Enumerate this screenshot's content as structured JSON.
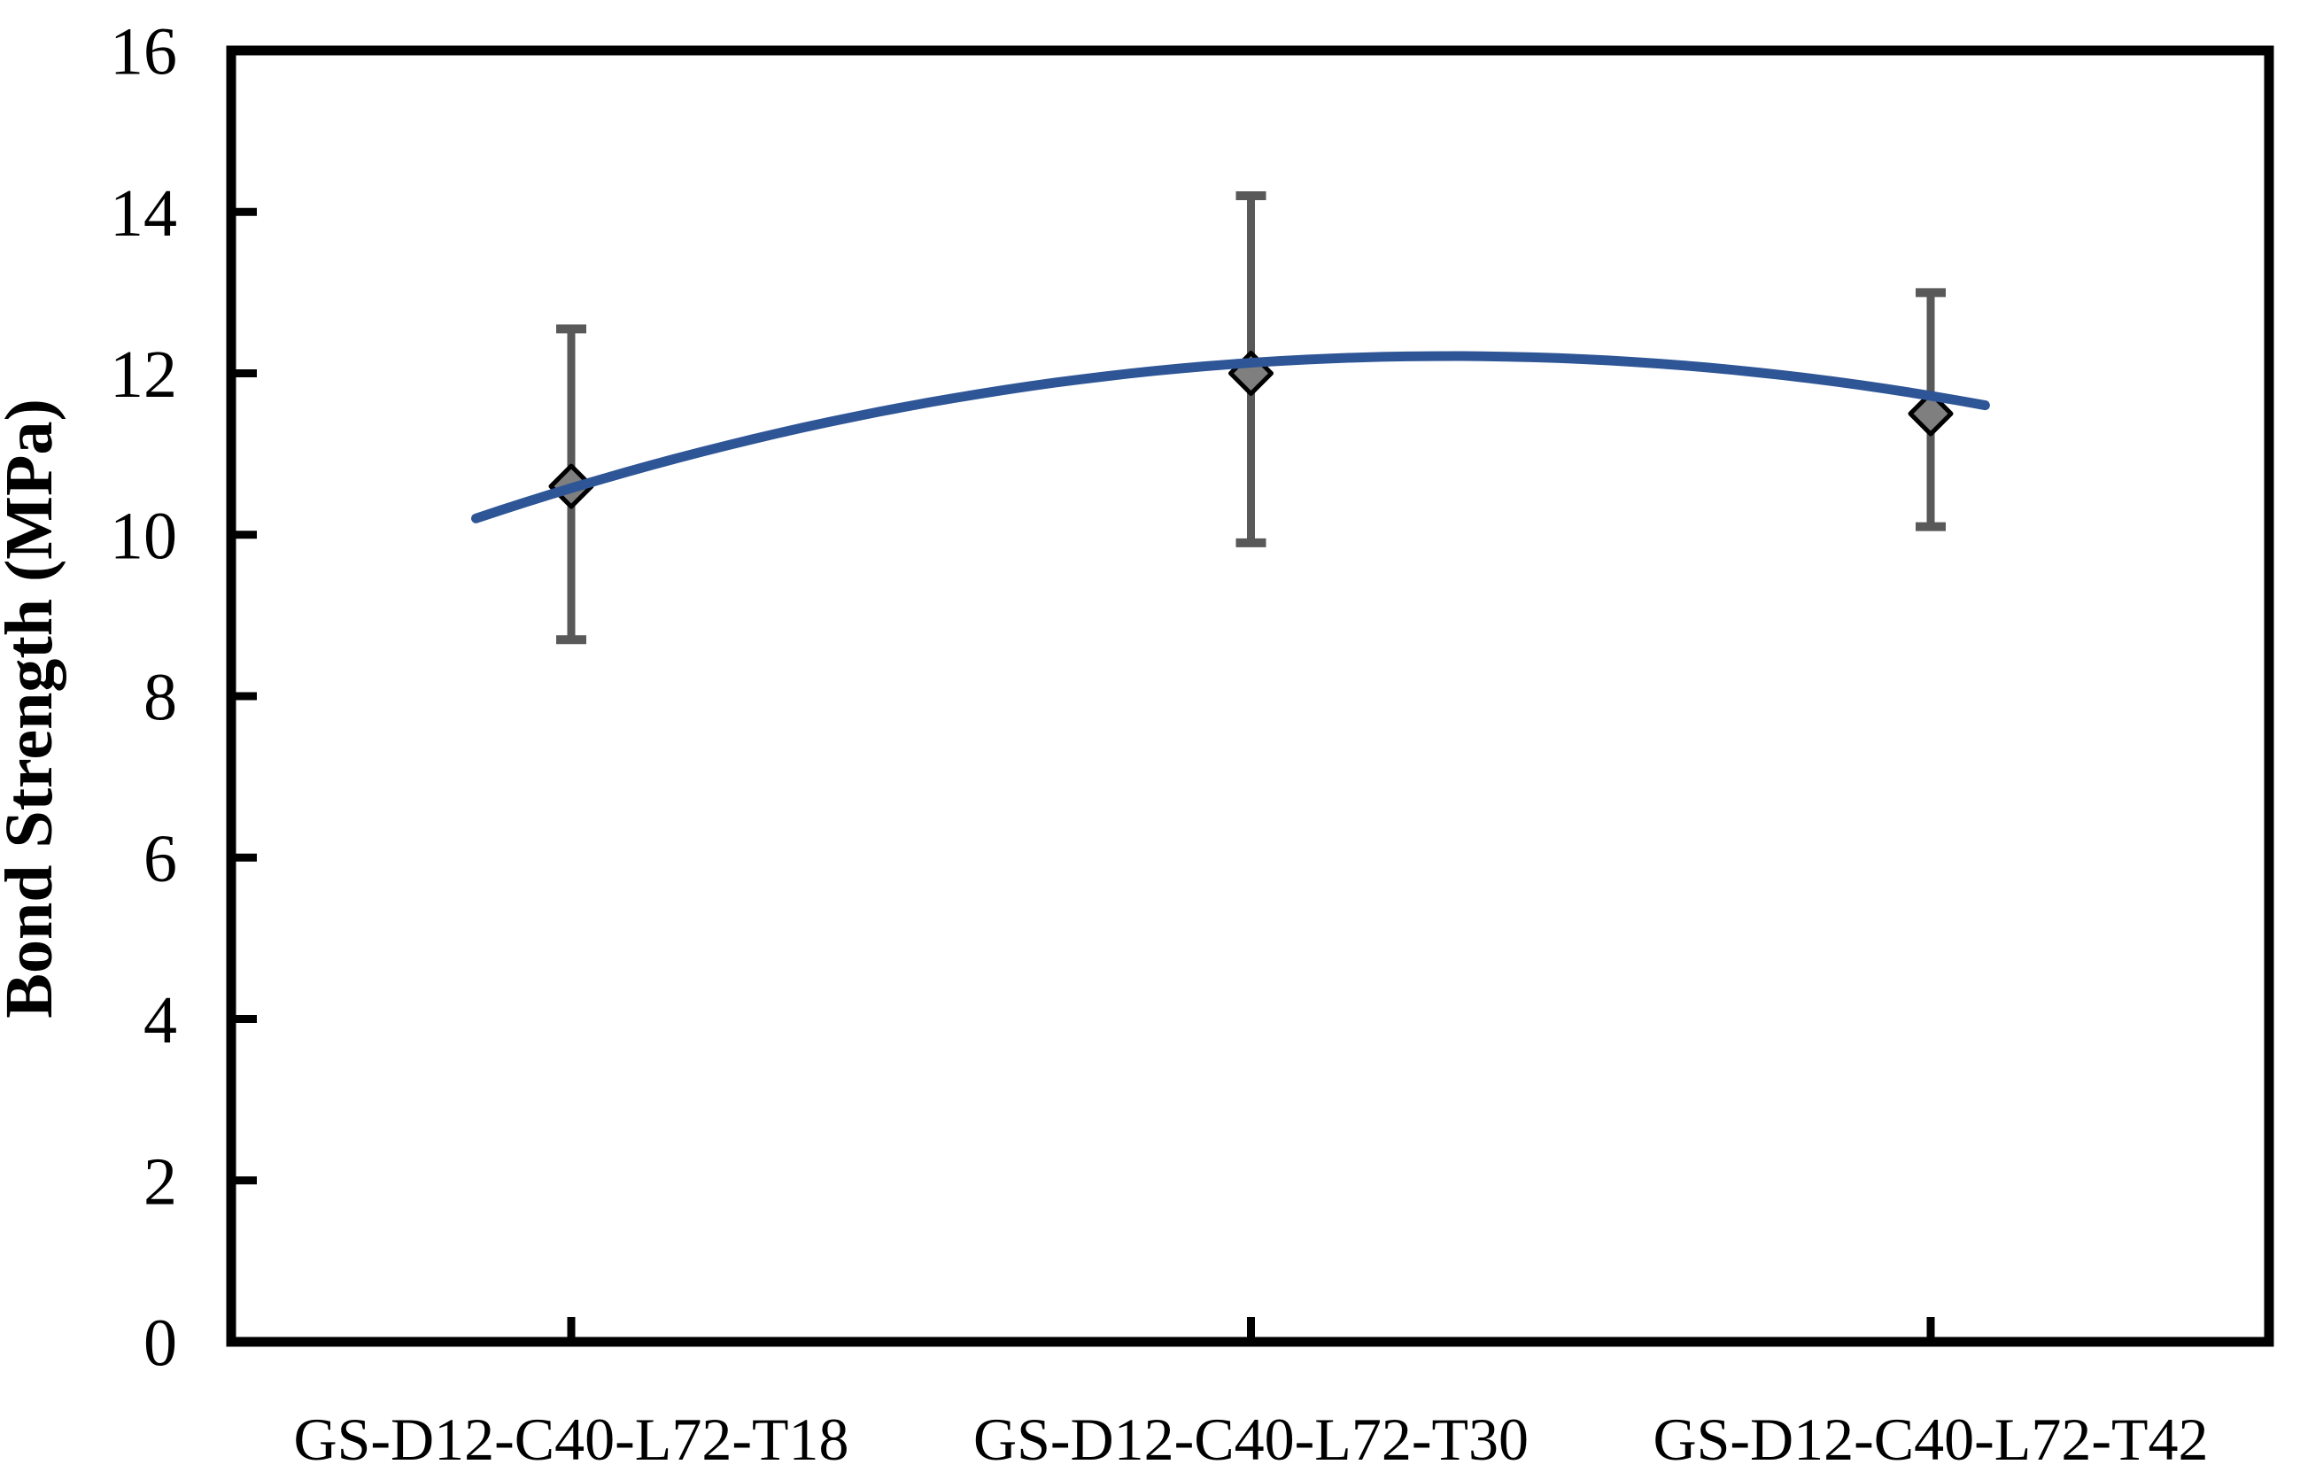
{
  "figure": {
    "background": "#ffffff"
  },
  "chart_data": {
    "type": "scatter",
    "title": "",
    "xlabel": "",
    "ylabel": "Bond Strength (MPa)",
    "ylim": [
      0,
      16
    ],
    "ytick_step": 2,
    "ytick_labels": [
      "0",
      "2",
      "4",
      "6",
      "8",
      "10",
      "12",
      "14",
      "16"
    ],
    "categories": [
      "GS-D12-C40-L72-T18",
      "GS-D12-C40-L72-T30",
      "GS-D12-C40-L72-T42"
    ],
    "series": [
      {
        "name": "Bond strength",
        "marker": "diamond",
        "values": [
          10.6,
          12.0,
          11.5
        ],
        "error_upper": [
          12.55,
          14.2,
          13.0
        ],
        "error_lower": [
          8.7,
          9.9,
          10.1
        ]
      }
    ],
    "trendline": {
      "type": "polynomial",
      "order": 2,
      "coefficients": {
        "a": -0.9814,
        "b": 4.4977,
        "c0": 7.0607
      },
      "x_domain": [
        0.86,
        3.08
      ],
      "start_value": 10.2,
      "peak_value": 12.2,
      "end_value": 11.6
    },
    "colors": {
      "trendline": "#2E5596",
      "error_bar": "#595959",
      "marker_fill": "#7F7F7F",
      "marker_stroke": "#000000",
      "axis": "#000000"
    },
    "grid": false,
    "legend": false
  }
}
